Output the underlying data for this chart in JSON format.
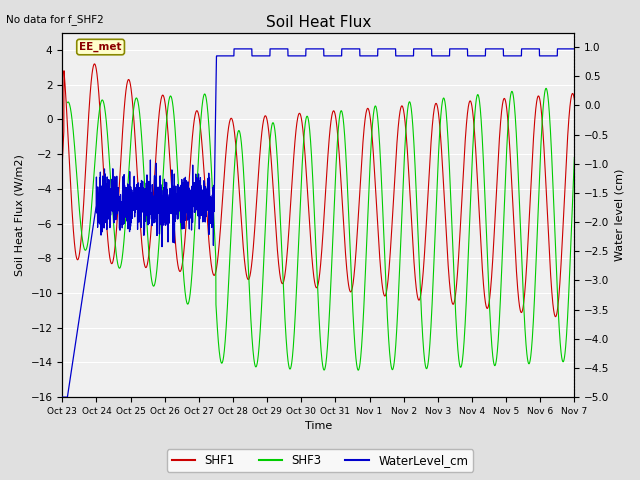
{
  "title": "Soil Heat Flux",
  "top_left_note": "No data for f_SHF2",
  "xlabel": "Time",
  "ylabel_left": "Soil Heat Flux (W/m2)",
  "ylabel_right": "Water level (cm)",
  "ylim_left": [
    -16,
    5
  ],
  "ylim_right": [
    -5.0,
    1.25
  ],
  "yticks_left": [
    -16,
    -14,
    -12,
    -10,
    -8,
    -6,
    -4,
    -2,
    0,
    2,
    4
  ],
  "yticks_right": [
    -5.0,
    -4.5,
    -4.0,
    -3.5,
    -3.0,
    -2.5,
    -2.0,
    -1.5,
    -1.0,
    -0.5,
    0.0,
    0.5,
    1.0
  ],
  "xtick_labels": [
    "Oct 23",
    "Oct 24",
    "Oct 25",
    "Oct 26",
    "Oct 27",
    "Oct 28",
    "Oct 29",
    "Oct 30",
    "Oct 31",
    "Nov 1",
    "Nov 2",
    "Nov 3",
    "Nov 4",
    "Nov 5",
    "Nov 6",
    "Nov 7"
  ],
  "annotation_text": "EE_met",
  "bg_color": "#e0e0e0",
  "plot_bg_color": "#f0f0f0",
  "shf1_color": "#cc0000",
  "shf3_color": "#00cc00",
  "water_color": "#0000cc",
  "legend_entries": [
    "SHF1",
    "SHF3",
    "WaterLevel_cm"
  ]
}
